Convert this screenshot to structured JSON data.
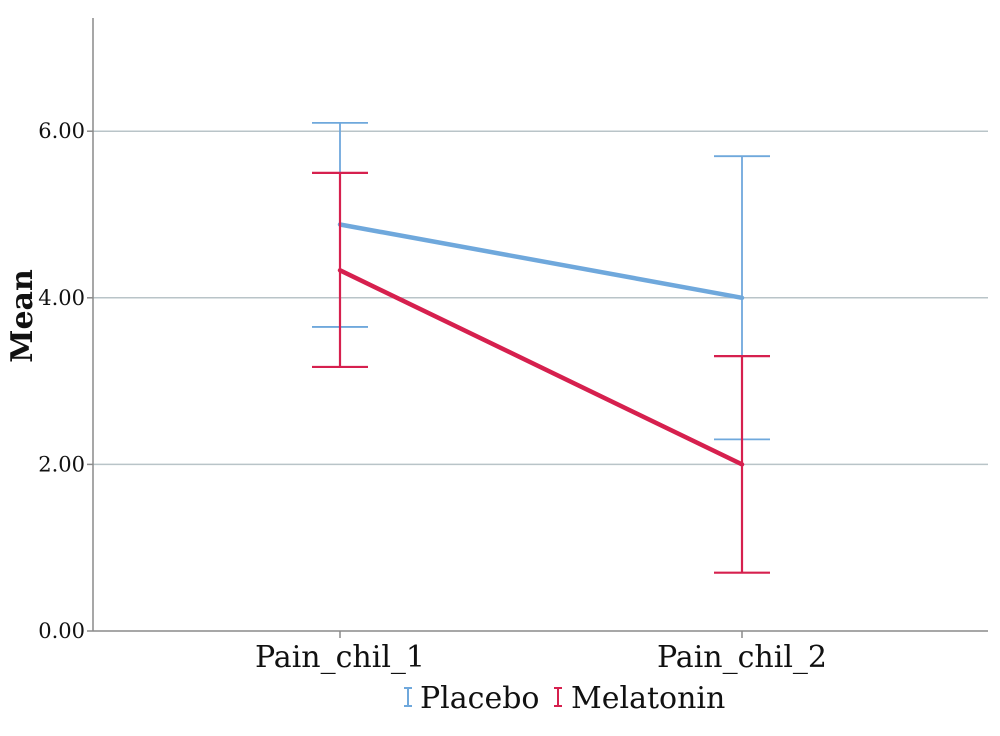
{
  "chart_data": {
    "type": "line",
    "title": "",
    "xlabel": "",
    "ylabel": "Mean",
    "categories": [
      "Pain_chil_1",
      "Pain_chil_2"
    ],
    "y_ticks": [
      "0.00",
      "2.00",
      "4.00",
      "6.00"
    ],
    "ylim": [
      0,
      7.35
    ],
    "grid": true,
    "legend_position": "bottom",
    "error_bars": true,
    "series": [
      {
        "name": "Placebo",
        "color": "#6fa8dc",
        "values": [
          4.88,
          4.0
        ],
        "error_low": [
          3.65,
          2.3
        ],
        "error_high": [
          6.1,
          5.7
        ]
      },
      {
        "name": "Melatonin",
        "color": "#d6204e",
        "values": [
          4.33,
          2.0
        ],
        "error_low": [
          3.17,
          0.7
        ],
        "error_high": [
          5.5,
          3.3
        ]
      }
    ]
  }
}
